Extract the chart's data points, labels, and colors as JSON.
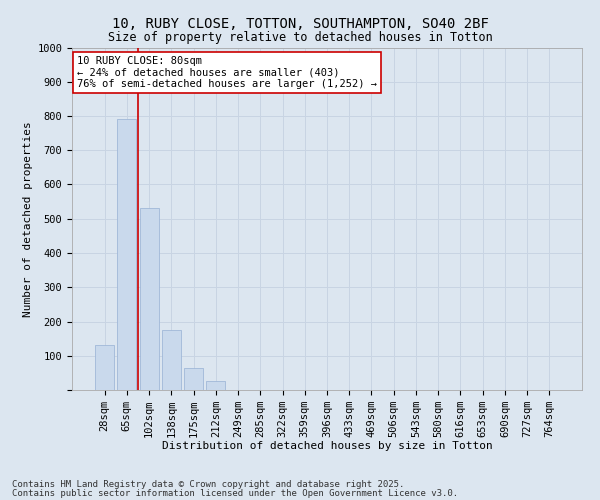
{
  "title_line1": "10, RUBY CLOSE, TOTTON, SOUTHAMPTON, SO40 2BF",
  "title_line2": "Size of property relative to detached houses in Totton",
  "xlabel": "Distribution of detached houses by size in Totton",
  "ylabel": "Number of detached properties",
  "categories": [
    "28sqm",
    "65sqm",
    "102sqm",
    "138sqm",
    "175sqm",
    "212sqm",
    "249sqm",
    "285sqm",
    "322sqm",
    "359sqm",
    "396sqm",
    "433sqm",
    "469sqm",
    "506sqm",
    "543sqm",
    "580sqm",
    "616sqm",
    "653sqm",
    "690sqm",
    "727sqm",
    "764sqm"
  ],
  "bar_heights": [
    130,
    790,
    530,
    175,
    65,
    25,
    0,
    0,
    0,
    0,
    0,
    0,
    0,
    0,
    0,
    0,
    0,
    0,
    0,
    0,
    0
  ],
  "bar_color": "#c9d9ec",
  "bar_edge_color": "#a0b8d8",
  "grid_color": "#c8d4e3",
  "background_color": "#dce6f0",
  "vline_color": "#cc0000",
  "vline_x": 1.5,
  "annotation_text": "10 RUBY CLOSE: 80sqm\n← 24% of detached houses are smaller (403)\n76% of semi-detached houses are larger (1,252) →",
  "annotation_box_color": "#ffffff",
  "annotation_box_edge": "#cc0000",
  "ylim": [
    0,
    1000
  ],
  "yticks": [
    0,
    100,
    200,
    300,
    400,
    500,
    600,
    700,
    800,
    900,
    1000
  ],
  "footer_line1": "Contains HM Land Registry data © Crown copyright and database right 2025.",
  "footer_line2": "Contains public sector information licensed under the Open Government Licence v3.0.",
  "title_fontsize": 10,
  "subtitle_fontsize": 8.5,
  "axis_label_fontsize": 8,
  "tick_fontsize": 7.5,
  "annotation_fontsize": 7.5,
  "footer_fontsize": 6.5
}
